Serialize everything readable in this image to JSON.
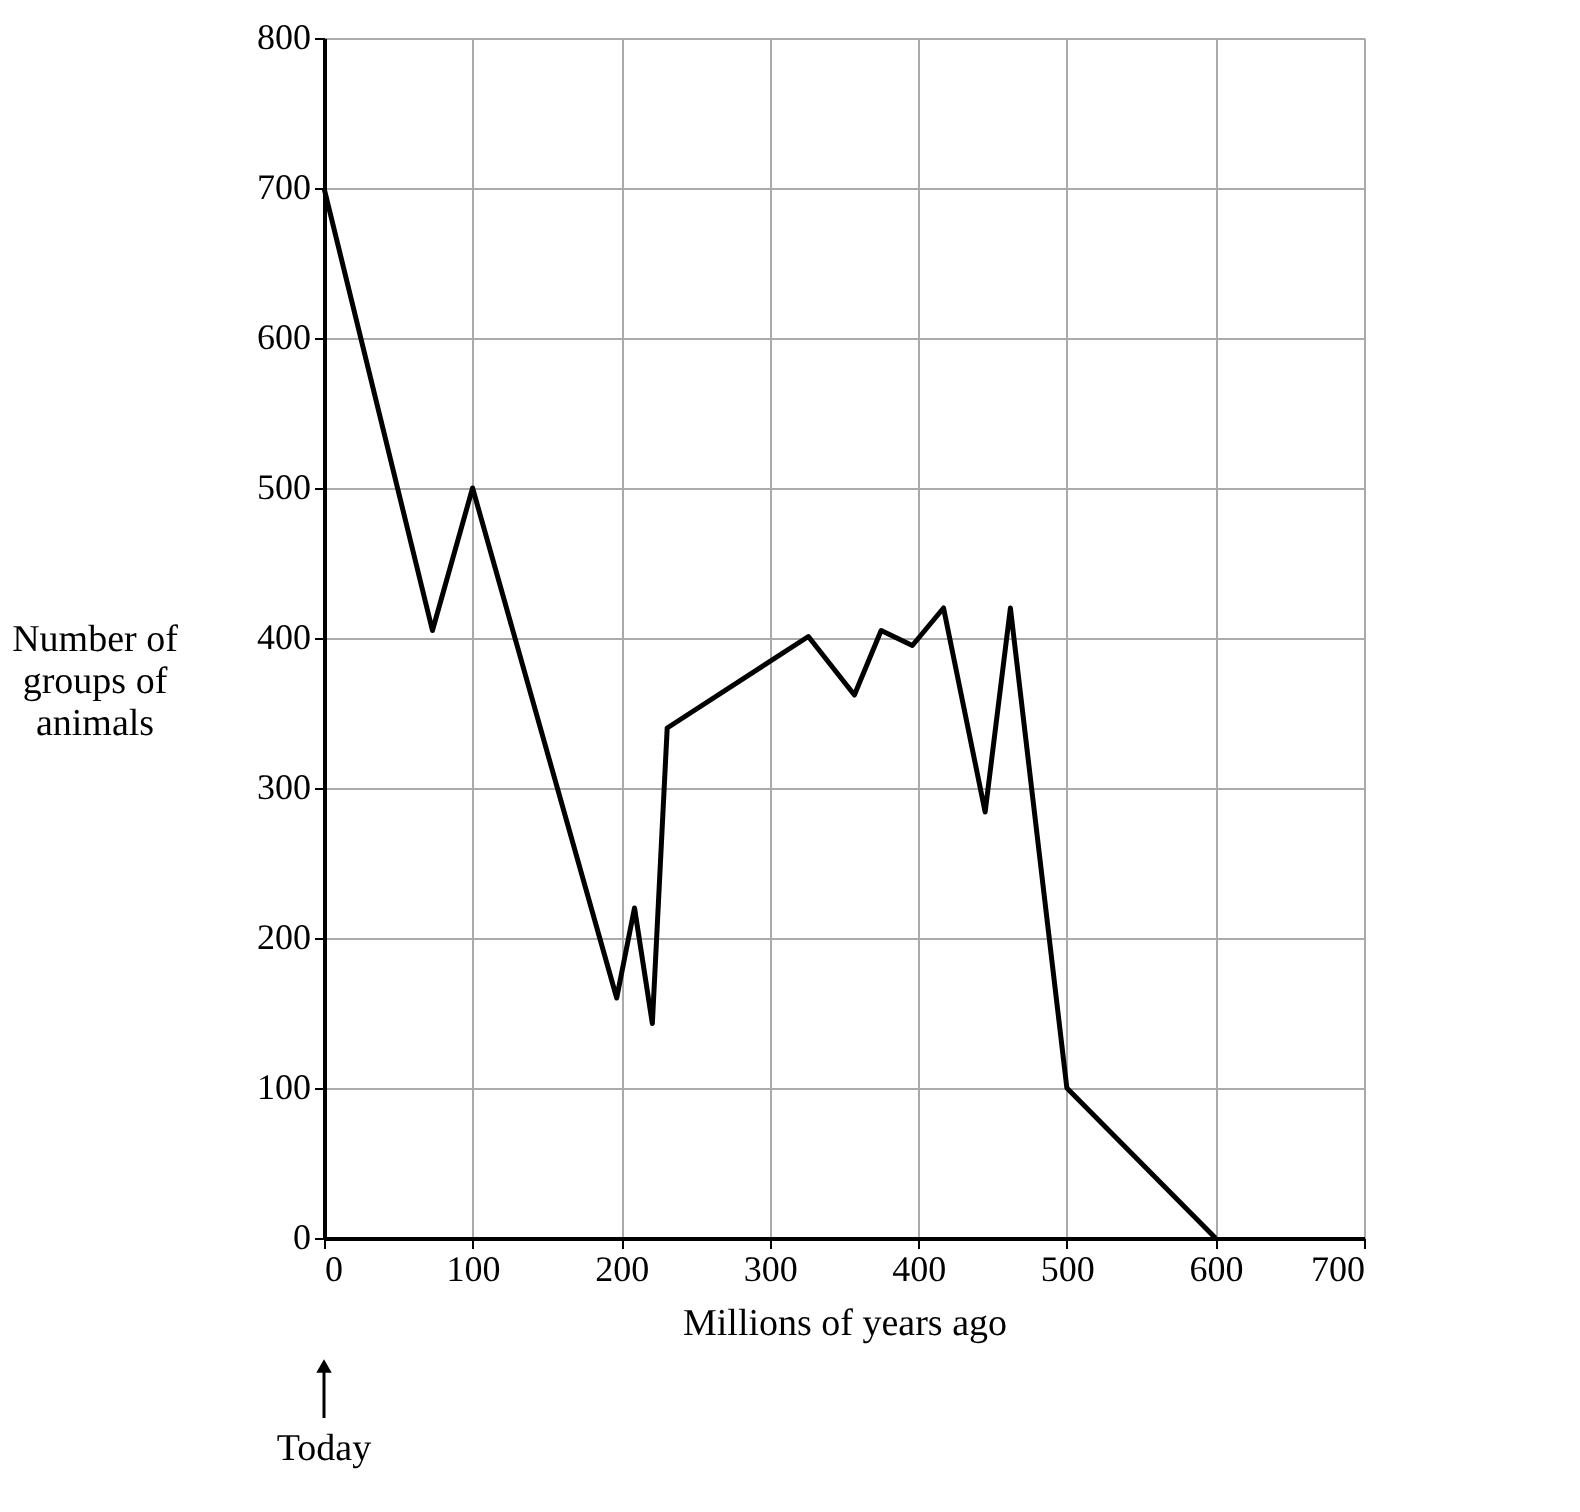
{
  "chart_data": {
    "type": "line",
    "xlabel": "Millions of years ago",
    "ylabel": "Number of groups of animals",
    "x": [
      0,
      73,
      100,
      197,
      209,
      221,
      231,
      326,
      357,
      375,
      396,
      417,
      445,
      462,
      500,
      600
    ],
    "series": [
      {
        "color": "#000000",
        "values": [
          700,
          405,
          500,
          160,
          220,
          143,
          340,
          401,
          362,
          405,
          395,
          420,
          284,
          420,
          100,
          0
        ]
      }
    ],
    "xlim": [
      0,
      700
    ],
    "xticks": [
      0,
      100,
      200,
      300,
      400,
      500,
      600,
      700
    ],
    "ylim": [
      0,
      800
    ],
    "yticks": [
      0,
      100,
      200,
      300,
      400,
      500,
      600,
      700,
      800
    ],
    "grid": true,
    "marker": "none",
    "line_style": "solid",
    "annotations": [
      "Today"
    ]
  }
}
